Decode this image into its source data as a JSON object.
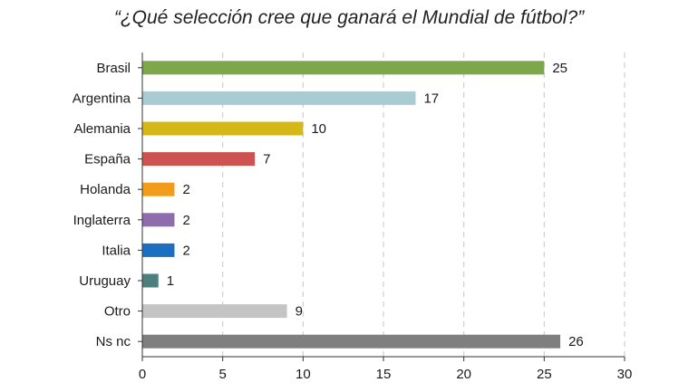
{
  "chart_data": {
    "type": "bar",
    "orientation": "horizontal",
    "title": "“¿Qué selección cree que ganará el Mundial de fútbol?”",
    "categories": [
      "Brasil",
      "Argentina",
      "Alemania",
      "España",
      "Holanda",
      "Inglaterra",
      "Italia",
      "Uruguay",
      "Otro",
      "Ns nc"
    ],
    "values": [
      25,
      17,
      10,
      7,
      2,
      2,
      2,
      1,
      9,
      26
    ],
    "colors": [
      "#7ea64b",
      "#a8ccd1",
      "#d4b817",
      "#cd5250",
      "#f39c1b",
      "#8f6cad",
      "#1a6fc0",
      "#4d7f7e",
      "#c4c4c4",
      "#7f7f7f"
    ],
    "xlim": [
      0,
      30
    ],
    "xticks": [
      0,
      5,
      10,
      15,
      20,
      25,
      30
    ],
    "grid": "vertical dashed",
    "data_labels": true,
    "legend": "none",
    "xlabel": "",
    "ylabel": ""
  }
}
